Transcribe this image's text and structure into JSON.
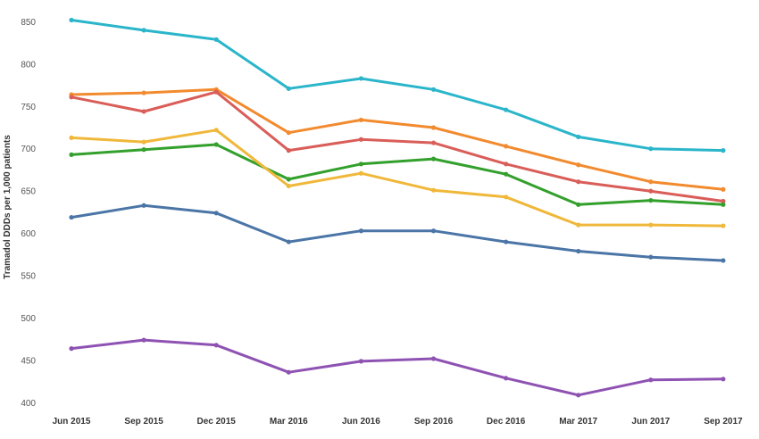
{
  "chart_data": {
    "type": "line",
    "title": "",
    "xlabel": "",
    "ylabel": "Tramadol DDDs per 1,000 patients",
    "ylim": [
      393,
      862
    ],
    "yticks": [
      400,
      450,
      500,
      550,
      600,
      650,
      700,
      750,
      800,
      850
    ],
    "grid": false,
    "legend": "none",
    "categories": [
      "Jun 2015",
      "Sep 2015",
      "Dec 2015",
      "Mar 2016",
      "Jun 2016",
      "Sep 2016",
      "Dec 2016",
      "Mar 2017",
      "Jun 2017",
      "Sep 2017"
    ],
    "series": [
      {
        "color": "#2ab5ca",
        "values": [
          852,
          840,
          829,
          771,
          783,
          770,
          746,
          714,
          700,
          698
        ]
      },
      {
        "color": "#f28a2e",
        "values": [
          764,
          766,
          770,
          719,
          734,
          725,
          703,
          681,
          661,
          652
        ]
      },
      {
        "color": "#d95d58",
        "values": [
          761,
          744,
          767,
          698,
          711,
          707,
          682,
          661,
          650,
          638
        ]
      },
      {
        "color": "#33a02c",
        "values": [
          693,
          699,
          705,
          664,
          682,
          688,
          670,
          634,
          639,
          634
        ]
      },
      {
        "color": "#f0b83a",
        "values": [
          713,
          708,
          722,
          656,
          671,
          651,
          643,
          610,
          610,
          609
        ]
      },
      {
        "color": "#4a75a6",
        "values": [
          619,
          633,
          624,
          590,
          603,
          603,
          590,
          579,
          572,
          568
        ]
      },
      {
        "color": "#8e52b3",
        "values": [
          464,
          474,
          468,
          436,
          449,
          452,
          429,
          409,
          427,
          428
        ]
      }
    ]
  }
}
